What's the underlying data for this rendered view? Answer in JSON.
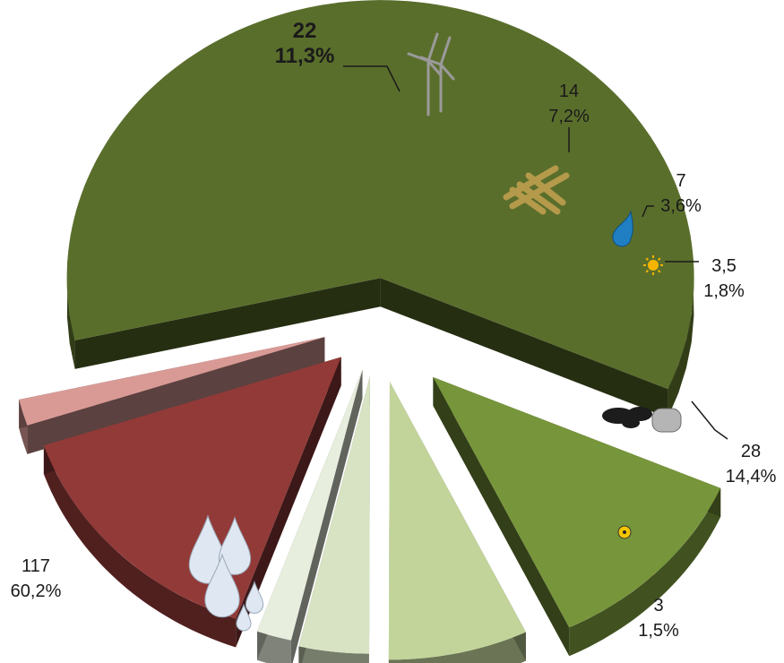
{
  "chart_data": {
    "type": "pie",
    "style": "exploded-3d",
    "slices": [
      {
        "value": 117,
        "value_label": "117",
        "percent_label": "60,2%",
        "color": "#5a6e2c",
        "icon": "water-drops-icon"
      },
      {
        "value": 22,
        "value_label": "22",
        "percent_label": "11,3%",
        "color": "#77953a",
        "icon": "wind-turbine-icon",
        "bold": true
      },
      {
        "value": 14,
        "value_label": "14",
        "percent_label": "7,2%",
        "color": "#c2d49a",
        "icon": "sugarcane-icon"
      },
      {
        "value": 7,
        "value_label": "7",
        "percent_label": "3,6%",
        "color": "#d7e3c2",
        "icon": "oil-drop-icon"
      },
      {
        "value": 3.5,
        "value_label": "3,5",
        "percent_label": "1,8%",
        "color": "#e7eedd",
        "icon": "sun-icon"
      },
      {
        "value": 28,
        "value_label": "28",
        "percent_label": "14,4%",
        "color": "#923a38",
        "icon": "coal-gas-icon"
      },
      {
        "value": 3,
        "value_label": "3",
        "percent_label": "1,5%",
        "color": "#d99a96",
        "icon": "radiation-icon"
      }
    ]
  }
}
